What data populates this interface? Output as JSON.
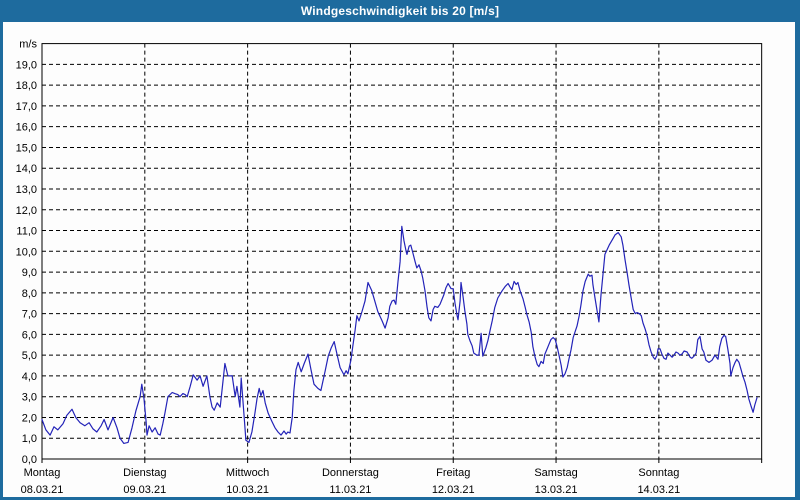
{
  "window": {
    "title": "Windgeschwindigkeit bis 20 [m/s]",
    "titlebar_color": "#1e6b9e",
    "frame_color": "#1e6b9e",
    "plot_background": "#fdfdfd"
  },
  "chart_data": {
    "type": "line",
    "title": "Windgeschwindigkeit bis 20 [m/s]",
    "unit_label": "m/s",
    "ylim": [
      0,
      20
    ],
    "xlim_hours": [
      0,
      168
    ],
    "grid": {
      "horizontal_step": 1,
      "vertical": "day boundaries",
      "style": "dashed",
      "color": "#000000"
    },
    "line_color": "#2323b8",
    "legend": "none",
    "y_ticks": [
      {
        "value": 0,
        "label": "0,0"
      },
      {
        "value": 1,
        "label": "1,0"
      },
      {
        "value": 2,
        "label": "2,0"
      },
      {
        "value": 3,
        "label": "3,0"
      },
      {
        "value": 4,
        "label": "4,0"
      },
      {
        "value": 5,
        "label": "5,0"
      },
      {
        "value": 6,
        "label": "6,0"
      },
      {
        "value": 7,
        "label": "7,0"
      },
      {
        "value": 8,
        "label": "8,0"
      },
      {
        "value": 9,
        "label": "9,0"
      },
      {
        "value": 10,
        "label": "10,0"
      },
      {
        "value": 11,
        "label": "11,0"
      },
      {
        "value": 12,
        "label": "12,0"
      },
      {
        "value": 13,
        "label": "13,0"
      },
      {
        "value": 14,
        "label": "14,0"
      },
      {
        "value": 15,
        "label": "15,0"
      },
      {
        "value": 16,
        "label": "16,0"
      },
      {
        "value": 17,
        "label": "17,0"
      },
      {
        "value": 18,
        "label": "18,0"
      },
      {
        "value": 19,
        "label": "19,0"
      }
    ],
    "x_days": [
      {
        "t": 0,
        "name": "Montag",
        "date": "08.03.21"
      },
      {
        "t": 24,
        "name": "Dienstag",
        "date": "09.03.21"
      },
      {
        "t": 48,
        "name": "Mittwoch",
        "date": "10.03.21"
      },
      {
        "t": 72,
        "name": "Donnerstag",
        "date": "11.03.21"
      },
      {
        "t": 96,
        "name": "Freitag",
        "date": "12.03.21"
      },
      {
        "t": 120,
        "name": "Samstag",
        "date": "13.03.21"
      },
      {
        "t": 144,
        "name": "Sonntag",
        "date": "14.03.21"
      }
    ],
    "series": [
      {
        "name": "Windgeschwindigkeit",
        "unit": "m/s",
        "points": [
          [
            0,
            1.9
          ],
          [
            0.9,
            1.4
          ],
          [
            1.9,
            1.15
          ],
          [
            2.8,
            1.55
          ],
          [
            3.7,
            1.4
          ],
          [
            4.9,
            1.7
          ],
          [
            5.8,
            2.1
          ],
          [
            7,
            2.4
          ],
          [
            7.9,
            2.0
          ],
          [
            8.9,
            1.75
          ],
          [
            10,
            1.6
          ],
          [
            11,
            1.75
          ],
          [
            11.9,
            1.45
          ],
          [
            12.8,
            1.3
          ],
          [
            13.8,
            1.6
          ],
          [
            14.5,
            1.9
          ],
          [
            15.4,
            1.4
          ],
          [
            16.6,
            2.0
          ],
          [
            17.5,
            1.5
          ],
          [
            18.2,
            1.0
          ],
          [
            19.1,
            0.75
          ],
          [
            20.1,
            0.8
          ],
          [
            21,
            1.5
          ],
          [
            21.9,
            2.3
          ],
          [
            22.9,
            3.0
          ],
          [
            23.3,
            3.6
          ],
          [
            23.8,
            2.9
          ],
          [
            24.3,
            1.8
          ],
          [
            24.5,
            1.15
          ],
          [
            25,
            1.6
          ],
          [
            25.7,
            1.3
          ],
          [
            26.4,
            1.5
          ],
          [
            27.1,
            1.2
          ],
          [
            27.6,
            1.15
          ],
          [
            28.2,
            1.7
          ],
          [
            28.7,
            2.2
          ],
          [
            29.4,
            3.0
          ],
          [
            30.4,
            3.2
          ],
          [
            31,
            3.15
          ],
          [
            31.7,
            3.1
          ],
          [
            32.2,
            3.0
          ],
          [
            32.9,
            3.15
          ],
          [
            33.4,
            3.1
          ],
          [
            33.9,
            3.0
          ],
          [
            34.6,
            3.5
          ],
          [
            35.3,
            4.05
          ],
          [
            36.2,
            3.8
          ],
          [
            36.9,
            4.0
          ],
          [
            37.6,
            3.5
          ],
          [
            38.5,
            4.0
          ],
          [
            39.2,
            3.0
          ],
          [
            39.7,
            2.5
          ],
          [
            40.2,
            2.35
          ],
          [
            40.9,
            2.7
          ],
          [
            41.6,
            2.5
          ],
          [
            42.7,
            4.6
          ],
          [
            43.4,
            4.0
          ],
          [
            44.4,
            4.0
          ],
          [
            45.1,
            3.0
          ],
          [
            45.5,
            3.5
          ],
          [
            46.2,
            2.5
          ],
          [
            46.5,
            3.9
          ],
          [
            47.2,
            2.0
          ],
          [
            47.6,
            0.9
          ],
          [
            48.3,
            0.8
          ],
          [
            49,
            1.3
          ],
          [
            49.7,
            2.2
          ],
          [
            50.2,
            2.9
          ],
          [
            50.7,
            3.4
          ],
          [
            51.1,
            3.05
          ],
          [
            51.6,
            3.3
          ],
          [
            52.1,
            2.7
          ],
          [
            52.8,
            2.2
          ],
          [
            53.7,
            1.8
          ],
          [
            54.4,
            1.5
          ],
          [
            55.1,
            1.3
          ],
          [
            55.8,
            1.15
          ],
          [
            56.5,
            1.35
          ],
          [
            57,
            1.2
          ],
          [
            57.4,
            1.3
          ],
          [
            57.9,
            1.25
          ],
          [
            58.4,
            2.0
          ],
          [
            58.8,
            3.3
          ],
          [
            59.3,
            4.3
          ],
          [
            59.8,
            4.65
          ],
          [
            60.5,
            4.2
          ],
          [
            61.2,
            4.6
          ],
          [
            62.1,
            5.05
          ],
          [
            62.8,
            4.3
          ],
          [
            63.5,
            3.6
          ],
          [
            64.4,
            3.4
          ],
          [
            65.1,
            3.3
          ],
          [
            66.1,
            4.25
          ],
          [
            66.8,
            4.95
          ],
          [
            67.5,
            5.35
          ],
          [
            68.2,
            5.65
          ],
          [
            68.9,
            5.0
          ],
          [
            69.6,
            4.4
          ],
          [
            70.5,
            4.05
          ],
          [
            71,
            4.25
          ],
          [
            71.4,
            4.1
          ],
          [
            72.1,
            4.75
          ],
          [
            72.6,
            5.5
          ],
          [
            73.1,
            6.2
          ],
          [
            73.5,
            6.9
          ],
          [
            74,
            6.65
          ],
          [
            74.7,
            7.1
          ],
          [
            75.4,
            7.6
          ],
          [
            76.1,
            8.5
          ],
          [
            77,
            8.1
          ],
          [
            77.7,
            7.6
          ],
          [
            78.4,
            7.1
          ],
          [
            79.4,
            6.65
          ],
          [
            80.1,
            6.3
          ],
          [
            80.8,
            6.8
          ],
          [
            81.2,
            7.35
          ],
          [
            81.7,
            7.6
          ],
          [
            82.2,
            7.65
          ],
          [
            82.6,
            7.45
          ],
          [
            83.1,
            8.55
          ],
          [
            83.6,
            9.5
          ],
          [
            84,
            11.2
          ],
          [
            84.5,
            10.5
          ],
          [
            85,
            10.0
          ],
          [
            85.2,
            9.85
          ],
          [
            85.7,
            10.25
          ],
          [
            86.1,
            10.3
          ],
          [
            86.6,
            9.9
          ],
          [
            87.1,
            9.5
          ],
          [
            87.5,
            9.2
          ],
          [
            88,
            9.35
          ],
          [
            88.5,
            9.05
          ],
          [
            88.9,
            8.7
          ],
          [
            89.4,
            8.1
          ],
          [
            89.9,
            7.3
          ],
          [
            90.3,
            6.8
          ],
          [
            90.8,
            6.65
          ],
          [
            91.3,
            7.2
          ],
          [
            91.7,
            7.35
          ],
          [
            92.4,
            7.3
          ],
          [
            92.9,
            7.45
          ],
          [
            93.4,
            7.7
          ],
          [
            93.8,
            7.9
          ],
          [
            94.3,
            8.25
          ],
          [
            94.8,
            8.45
          ],
          [
            95.5,
            8.2
          ],
          [
            96,
            8.2
          ],
          [
            96.4,
            7.5
          ],
          [
            96.9,
            6.9
          ],
          [
            97.1,
            6.7
          ],
          [
            97.6,
            7.6
          ],
          [
            97.8,
            8.5
          ],
          [
            98.3,
            7.8
          ],
          [
            98.7,
            7.15
          ],
          [
            99.2,
            6.5
          ],
          [
            99.4,
            6.0
          ],
          [
            99.9,
            5.7
          ],
          [
            100.4,
            5.45
          ],
          [
            100.8,
            5.1
          ],
          [
            101.5,
            5.0
          ],
          [
            102,
            5.0
          ],
          [
            102.5,
            6.05
          ],
          [
            102.9,
            4.95
          ],
          [
            103.6,
            5.35
          ],
          [
            104.1,
            5.7
          ],
          [
            104.6,
            6.2
          ],
          [
            105.1,
            6.65
          ],
          [
            105.7,
            7.3
          ],
          [
            106.4,
            7.75
          ],
          [
            107.4,
            8.1
          ],
          [
            108.1,
            8.3
          ],
          [
            108.8,
            8.45
          ],
          [
            109.2,
            8.3
          ],
          [
            109.7,
            8.15
          ],
          [
            110.2,
            8.55
          ],
          [
            110.7,
            8.4
          ],
          [
            111.1,
            8.5
          ],
          [
            111.6,
            8.1
          ],
          [
            112.3,
            7.7
          ],
          [
            112.8,
            7.3
          ],
          [
            113.2,
            6.95
          ],
          [
            113.7,
            6.6
          ],
          [
            114.2,
            6.1
          ],
          [
            114.6,
            5.4
          ],
          [
            115.1,
            4.9
          ],
          [
            115.6,
            4.55
          ],
          [
            116,
            4.45
          ],
          [
            116.5,
            4.7
          ],
          [
            117,
            4.6
          ],
          [
            117.4,
            5.05
          ],
          [
            117.9,
            5.3
          ],
          [
            118.4,
            5.55
          ],
          [
            118.8,
            5.75
          ],
          [
            119.3,
            5.85
          ],
          [
            119.8,
            5.75
          ],
          [
            120.2,
            5.45
          ],
          [
            120.7,
            5.0
          ],
          [
            121.2,
            4.5
          ],
          [
            121.6,
            3.95
          ],
          [
            122.1,
            4.1
          ],
          [
            122.6,
            4.4
          ],
          [
            123,
            4.8
          ],
          [
            123.5,
            5.25
          ],
          [
            124,
            5.85
          ],
          [
            124.4,
            6.1
          ],
          [
            124.9,
            6.4
          ],
          [
            125.4,
            6.9
          ],
          [
            125.8,
            7.4
          ],
          [
            126.3,
            8.1
          ],
          [
            126.8,
            8.55
          ],
          [
            127.5,
            8.9
          ],
          [
            127.9,
            8.8
          ],
          [
            128.4,
            8.85
          ],
          [
            128.6,
            8.4
          ],
          [
            129.1,
            7.75
          ],
          [
            129.6,
            7.1
          ],
          [
            130,
            6.6
          ],
          [
            130.5,
            7.9
          ],
          [
            131,
            9.0
          ],
          [
            131.4,
            9.85
          ],
          [
            132.4,
            10.3
          ],
          [
            133.1,
            10.55
          ],
          [
            133.8,
            10.8
          ],
          [
            134.5,
            10.9
          ],
          [
            135.2,
            10.7
          ],
          [
            135.6,
            10.3
          ],
          [
            136.1,
            9.6
          ],
          [
            136.6,
            8.95
          ],
          [
            137,
            8.4
          ],
          [
            137.5,
            7.8
          ],
          [
            138,
            7.2
          ],
          [
            138.5,
            7.0
          ],
          [
            138.9,
            7.05
          ],
          [
            139.4,
            7.0
          ],
          [
            139.9,
            6.9
          ],
          [
            140.3,
            6.55
          ],
          [
            140.8,
            6.25
          ],
          [
            141.3,
            5.9
          ],
          [
            141.7,
            5.5
          ],
          [
            142.2,
            5.15
          ],
          [
            142.7,
            4.9
          ],
          [
            143.1,
            4.8
          ],
          [
            143.6,
            5.0
          ],
          [
            143.8,
            5.3
          ],
          [
            144.3,
            5.3
          ],
          [
            144.7,
            5.05
          ],
          [
            145.2,
            4.85
          ],
          [
            145.7,
            4.8
          ],
          [
            146.1,
            5.1
          ],
          [
            146.6,
            5.0
          ],
          [
            147.1,
            4.9
          ],
          [
            147.5,
            5.0
          ],
          [
            148,
            5.15
          ],
          [
            148.5,
            5.1
          ],
          [
            148.9,
            5.0
          ],
          [
            149.4,
            5.05
          ],
          [
            149.9,
            5.2
          ],
          [
            150.6,
            5.15
          ],
          [
            151.3,
            4.9
          ],
          [
            151.7,
            4.85
          ],
          [
            152.2,
            4.95
          ],
          [
            152.7,
            5.1
          ],
          [
            153.1,
            5.75
          ],
          [
            153.6,
            5.9
          ],
          [
            154.1,
            5.3
          ],
          [
            154.5,
            5.15
          ],
          [
            155,
            4.75
          ],
          [
            155.7,
            4.65
          ],
          [
            156.4,
            4.75
          ],
          [
            157.1,
            5.0
          ],
          [
            157.8,
            4.8
          ],
          [
            158.2,
            5.4
          ],
          [
            158.7,
            5.8
          ],
          [
            159.2,
            5.95
          ],
          [
            159.6,
            5.9
          ],
          [
            160.1,
            5.3
          ],
          [
            160.6,
            4.6
          ],
          [
            160.8,
            4.0
          ],
          [
            161.3,
            4.4
          ],
          [
            161.8,
            4.65
          ],
          [
            162.2,
            4.8
          ],
          [
            162.7,
            4.65
          ],
          [
            163.2,
            4.3
          ],
          [
            163.6,
            4.0
          ],
          [
            164.1,
            3.7
          ],
          [
            164.6,
            3.3
          ],
          [
            165,
            2.9
          ],
          [
            165.5,
            2.55
          ],
          [
            166,
            2.25
          ],
          [
            166.4,
            2.6
          ],
          [
            166.9,
            2.95
          ]
        ]
      }
    ]
  }
}
